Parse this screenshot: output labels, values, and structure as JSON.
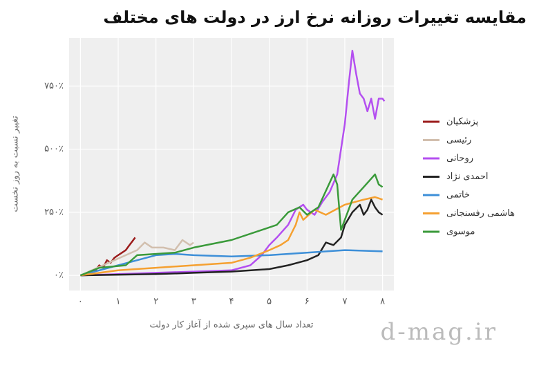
{
  "chart_data": {
    "type": "line",
    "title": "مقایسه تغییرات روزانه نرخ ارز در دولت های مختلف",
    "x_label": "تعداد سال های سپری شده از آغاز کار دولت",
    "y_label": "تغییر نسبت به روز نخست",
    "watermark": "d-mag.ir",
    "xlim": [
      -0.3,
      8.3
    ],
    "xticks": [
      {
        "value": 0,
        "label": "۰"
      },
      {
        "value": 1,
        "label": "۱"
      },
      {
        "value": 2,
        "label": "۲"
      },
      {
        "value": 3,
        "label": "۳"
      },
      {
        "value": 4,
        "label": "۴"
      },
      {
        "value": 5,
        "label": "۵"
      },
      {
        "value": 6,
        "label": "۶"
      },
      {
        "value": 7,
        "label": "۷"
      },
      {
        "value": 8,
        "label": "۸"
      }
    ],
    "ylim": [
      -60,
      940
    ],
    "yticks": [
      {
        "value": 0,
        "label": "۰٪"
      },
      {
        "value": 250,
        "label": "۲۵۰٪"
      },
      {
        "value": 500,
        "label": "۵۰۰٪"
      },
      {
        "value": 750,
        "label": "۷۵۰٪"
      }
    ],
    "grid": true,
    "legend": "right",
    "series": [
      {
        "name": "پزشکیان",
        "color": "#9b1b1b",
        "x": [
          0,
          0.2,
          0.4,
          0.5,
          0.6,
          0.7,
          0.8,
          0.9,
          1.0,
          1.1,
          1.2,
          1.3,
          1.4,
          1.45
        ],
        "values": [
          0,
          5,
          20,
          40,
          30,
          60,
          50,
          70,
          80,
          90,
          100,
          120,
          140,
          150
        ]
      },
      {
        "name": "رئیسی",
        "color": "#d2bfae",
        "x": [
          0,
          0.3,
          0.6,
          0.9,
          1.2,
          1.5,
          1.7,
          1.9,
          2.2,
          2.5,
          2.7,
          2.9,
          3.0
        ],
        "values": [
          0,
          20,
          40,
          60,
          80,
          100,
          130,
          110,
          110,
          100,
          140,
          120,
          130
        ]
      },
      {
        "name": "روحانی",
        "color": "#b44ff0",
        "x": [
          0,
          1,
          2,
          3,
          4,
          4.5,
          4.8,
          5,
          5.2,
          5.5,
          5.7,
          5.9,
          6,
          6.2,
          6.4,
          6.6,
          6.8,
          6.9,
          7.0,
          7.1,
          7.2,
          7.3,
          7.4,
          7.5,
          7.6,
          7.7,
          7.8,
          7.9,
          8.0,
          8.05
        ],
        "values": [
          0,
          5,
          10,
          15,
          20,
          40,
          80,
          120,
          150,
          200,
          260,
          280,
          260,
          240,
          290,
          330,
          400,
          500,
          600,
          750,
          890,
          800,
          720,
          700,
          650,
          700,
          620,
          700,
          700,
          690
        ]
      },
      {
        "name": "احمدی نژاد",
        "color": "#222222",
        "x": [
          0,
          2,
          3,
          4,
          5,
          5.5,
          6,
          6.3,
          6.5,
          6.7,
          6.9,
          7.0,
          7.2,
          7.4,
          7.5,
          7.6,
          7.7,
          7.8,
          7.9,
          8.0
        ],
        "values": [
          0,
          5,
          10,
          15,
          25,
          40,
          60,
          80,
          130,
          120,
          150,
          200,
          250,
          280,
          240,
          260,
          300,
          270,
          250,
          240
        ]
      },
      {
        "name": "خاتمی",
        "color": "#3d8fd8",
        "x": [
          0,
          0.5,
          1,
          2,
          2.5,
          3,
          4,
          5,
          6,
          7,
          8
        ],
        "values": [
          0,
          20,
          40,
          80,
          85,
          80,
          75,
          80,
          90,
          100,
          95
        ]
      },
      {
        "name": "هاشمی رفسنجانی",
        "color": "#f5a030",
        "x": [
          0,
          1,
          2,
          3,
          4,
          4.5,
          5,
          5.3,
          5.5,
          5.7,
          5.8,
          5.9,
          6.2,
          6.5,
          7,
          7.5,
          7.8,
          8
        ],
        "values": [
          0,
          20,
          30,
          40,
          50,
          70,
          100,
          120,
          140,
          200,
          250,
          220,
          260,
          240,
          280,
          300,
          310,
          300
        ]
      },
      {
        "name": "موسوی",
        "color": "#3a9a3a",
        "x": [
          0,
          0.5,
          1.2,
          1.5,
          2.5,
          3,
          4,
          4.8,
          5.2,
          5.5,
          5.8,
          6,
          6.3,
          6.7,
          6.8,
          6.9,
          7.2,
          7.5,
          7.8,
          7.9,
          8.0
        ],
        "values": [
          0,
          30,
          40,
          80,
          90,
          110,
          140,
          180,
          200,
          250,
          270,
          240,
          270,
          400,
          360,
          180,
          300,
          350,
          400,
          360,
          350
        ]
      }
    ]
  }
}
